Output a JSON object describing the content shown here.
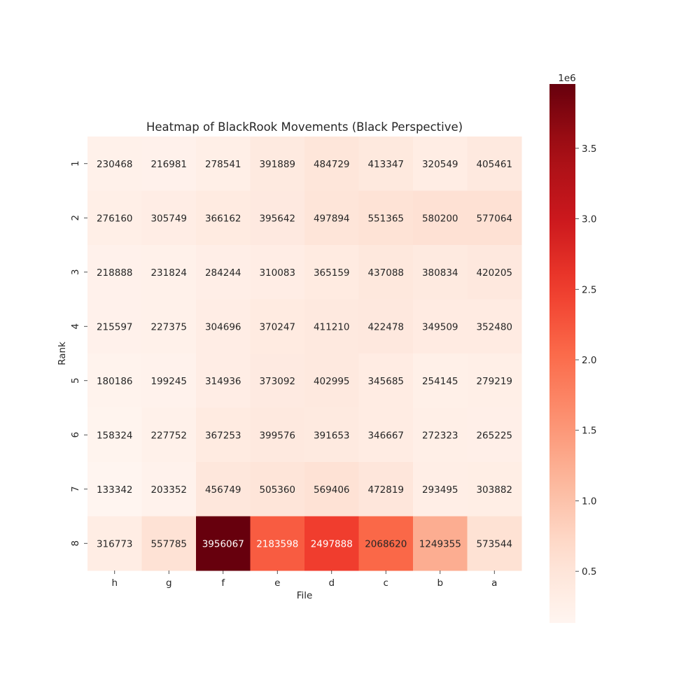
{
  "chart_data": {
    "type": "heatmap",
    "title": "Heatmap of BlackRook Movements (Black Perspective)",
    "xlabel": "File",
    "ylabel": "Rank",
    "x_categories": [
      "h",
      "g",
      "f",
      "e",
      "d",
      "c",
      "b",
      "a"
    ],
    "y_categories": [
      "1",
      "2",
      "3",
      "4",
      "5",
      "6",
      "7",
      "8"
    ],
    "values": [
      [
        230468,
        216981,
        278541,
        391889,
        484729,
        413347,
        320549,
        405461
      ],
      [
        276160,
        305749,
        366162,
        395642,
        497894,
        551365,
        580200,
        577064
      ],
      [
        218888,
        231824,
        284244,
        310083,
        365159,
        437088,
        380834,
        420205
      ],
      [
        215597,
        227375,
        304696,
        370247,
        411210,
        422478,
        349509,
        352480
      ],
      [
        180186,
        199245,
        314936,
        373092,
        402995,
        345685,
        254145,
        279219
      ],
      [
        158324,
        227752,
        367253,
        399576,
        391653,
        346667,
        272323,
        265225
      ],
      [
        133342,
        203352,
        456749,
        505360,
        569406,
        472819,
        293495,
        303882
      ],
      [
        316773,
        557785,
        3956067,
        2183598,
        2497888,
        2068620,
        1249355,
        573544
      ]
    ],
    "colormap": "Reds",
    "value_range": [
      133342,
      3956067
    ],
    "colorbar": {
      "ticks": [
        0.5,
        1.0,
        1.5,
        2.0,
        2.5,
        3.0,
        3.5
      ],
      "tick_labels": [
        "0.5",
        "1.0",
        "1.5",
        "2.0",
        "2.5",
        "3.0",
        "3.5"
      ],
      "multiplier_label": "1e6",
      "scale": 1000000
    },
    "annotations": true,
    "grid": false
  }
}
